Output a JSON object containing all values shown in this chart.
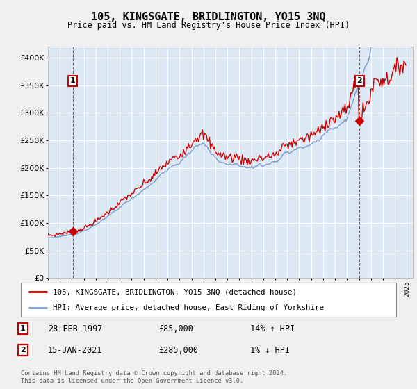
{
  "title": "105, KINGSGATE, BRIDLINGTON, YO15 3NQ",
  "subtitle": "Price paid vs. HM Land Registry's House Price Index (HPI)",
  "fig_bg_color": "#f0f0f0",
  "plot_bg_color": "#dce9f5",
  "sale1_date": "28-FEB-1997",
  "sale1_price": 85000,
  "sale1_hpi": "14% ↑ HPI",
  "sale2_date": "15-JAN-2021",
  "sale2_price": 285000,
  "sale2_hpi": "1% ↓ HPI",
  "legend1": "105, KINGSGATE, BRIDLINGTON, YO15 3NQ (detached house)",
  "legend2": "HPI: Average price, detached house, East Riding of Yorkshire",
  "footer": "Contains HM Land Registry data © Crown copyright and database right 2024.\nThis data is licensed under the Open Government Licence v3.0.",
  "property_color": "#cc0000",
  "hpi_color": "#7799cc",
  "ylim_min": 0,
  "ylim_max": 420000,
  "yticks": [
    0,
    50000,
    100000,
    150000,
    200000,
    250000,
    300000,
    350000,
    400000
  ],
  "ytick_labels": [
    "£0",
    "£50K",
    "£100K",
    "£150K",
    "£200K",
    "£250K",
    "£300K",
    "£350K",
    "£400K"
  ],
  "sale1_x": 1997.08,
  "sale2_x": 2021.04,
  "xlim_min": 1995.0,
  "xlim_max": 2025.5
}
